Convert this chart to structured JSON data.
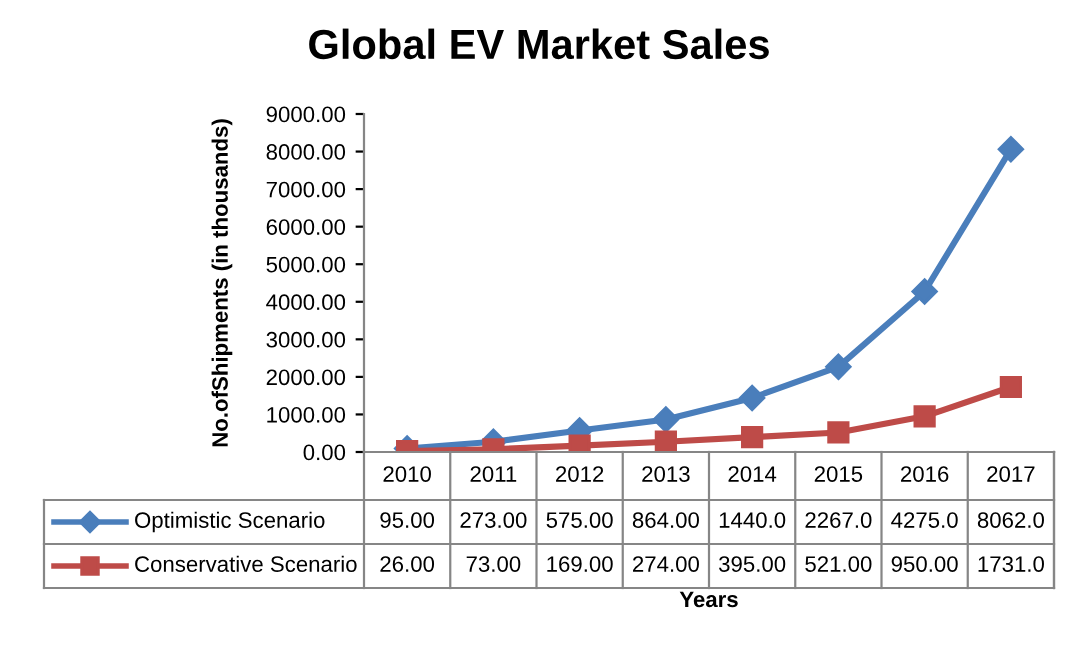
{
  "chart_data": {
    "type": "line",
    "title": "Global EV Market Sales",
    "xlabel": "Years",
    "ylabel": "No.ofShipments (in thousands)",
    "categories": [
      "2010",
      "2011",
      "2012",
      "2013",
      "2014",
      "2015",
      "2016",
      "2017"
    ],
    "series": [
      {
        "name": "Optimistic Scenario",
        "color": "#4a7ebb",
        "marker": "diamond",
        "values": [
          95,
          273,
          575,
          864,
          1440,
          2267,
          4275,
          8062
        ],
        "value_labels": [
          "95.00",
          "273.00",
          "575.00",
          "864.00",
          "1440.0",
          "2267.0",
          "4275.0",
          "8062.0"
        ]
      },
      {
        "name": "Conservative Scenario",
        "color": "#be4b48",
        "marker": "square",
        "values": [
          26,
          73,
          169,
          274,
          395,
          521,
          950,
          1731
        ],
        "value_labels": [
          "26.00",
          "73.00",
          "169.00",
          "274.00",
          "395.00",
          "521.00",
          "950.00",
          "1731.0"
        ]
      }
    ],
    "ylim": [
      0,
      9000
    ],
    "yticks": [
      {
        "value": 0,
        "label": "0.00"
      },
      {
        "value": 1000,
        "label": "1000.00"
      },
      {
        "value": 2000,
        "label": "2000.00"
      },
      {
        "value": 3000,
        "label": "3000.00"
      },
      {
        "value": 4000,
        "label": "4000.00"
      },
      {
        "value": 5000,
        "label": "5000.00"
      },
      {
        "value": 6000,
        "label": "6000.00"
      },
      {
        "value": 7000,
        "label": "7000.00"
      },
      {
        "value": 8000,
        "label": "8000.00"
      },
      {
        "value": 9000,
        "label": "9000.00"
      }
    ],
    "grid": false,
    "legend": "bottom left",
    "line_style": "solid"
  }
}
